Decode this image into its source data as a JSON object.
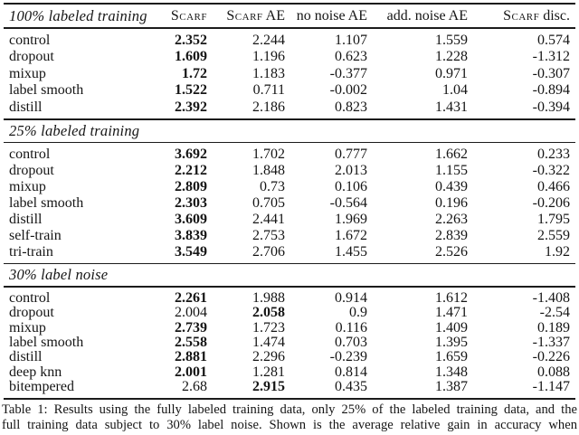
{
  "columns": [
    {
      "smallcaps": "Scarf",
      "rest": ""
    },
    {
      "smallcaps": "Scarf",
      "rest": " AE"
    },
    {
      "smallcaps": "",
      "rest": "no noise AE"
    },
    {
      "smallcaps": "",
      "rest": "add. noise AE"
    },
    {
      "smallcaps": "Scarf",
      "rest": " disc."
    }
  ],
  "sections": [
    {
      "title": "100% labeled training",
      "rows": [
        {
          "label": "control",
          "values": [
            "2.352",
            "2.244",
            "1.107",
            "1.559",
            "0.574"
          ],
          "bold_col": 0
        },
        {
          "label": "dropout",
          "values": [
            "1.609",
            "1.196",
            "0.623",
            "1.228",
            "-1.312"
          ],
          "bold_col": 0
        },
        {
          "label": "mixup",
          "values": [
            "1.72",
            "1.183",
            "-0.377",
            "0.971",
            "-0.307"
          ],
          "bold_col": 0
        },
        {
          "label": "label smooth",
          "values": [
            "1.522",
            "0.711",
            "-0.002",
            "1.04",
            "-0.894"
          ],
          "bold_col": 0
        },
        {
          "label": "distill",
          "values": [
            "2.392",
            "2.186",
            "0.823",
            "1.431",
            "-0.394"
          ],
          "bold_col": 0
        }
      ]
    },
    {
      "title": "25% labeled training",
      "rows": [
        {
          "label": "control",
          "values": [
            "3.692",
            "1.702",
            "0.777",
            "1.662",
            "0.233"
          ],
          "bold_col": 0
        },
        {
          "label": "dropout",
          "values": [
            "2.212",
            "1.848",
            "2.013",
            "1.155",
            "-0.322"
          ],
          "bold_col": 0
        },
        {
          "label": "mixup",
          "values": [
            "2.809",
            "0.73",
            "0.106",
            "0.439",
            "0.466"
          ],
          "bold_col": 0
        },
        {
          "label": "label smooth",
          "values": [
            "2.303",
            "0.705",
            "-0.564",
            "0.196",
            "-0.206"
          ],
          "bold_col": 0
        },
        {
          "label": "distill",
          "values": [
            "3.609",
            "2.441",
            "1.969",
            "2.263",
            "1.795"
          ],
          "bold_col": 0
        },
        {
          "label": "self-train",
          "values": [
            "3.839",
            "2.753",
            "1.672",
            "2.839",
            "2.559"
          ],
          "bold_col": 0
        },
        {
          "label": "tri-train",
          "values": [
            "3.549",
            "2.706",
            "1.455",
            "2.526",
            "1.92"
          ],
          "bold_col": 0
        }
      ]
    },
    {
      "title": "30% label noise",
      "rows": [
        {
          "label": "control",
          "values": [
            "2.261",
            "1.988",
            "0.914",
            "1.612",
            "-1.408"
          ],
          "bold_col": 0
        },
        {
          "label": "dropout",
          "values": [
            "2.004",
            "2.058",
            "0.9",
            "1.471",
            "-2.54"
          ],
          "bold_col": 1
        },
        {
          "label": "mixup",
          "values": [
            "2.739",
            "1.723",
            "0.116",
            "1.409",
            "0.189"
          ],
          "bold_col": 0
        },
        {
          "label": "label smooth",
          "values": [
            "2.558",
            "1.474",
            "0.703",
            "1.395",
            "-1.337"
          ],
          "bold_col": 0
        },
        {
          "label": "distill",
          "values": [
            "2.881",
            "2.296",
            "-0.239",
            "1.659",
            "-0.226"
          ],
          "bold_col": 0
        },
        {
          "label": "deep knn",
          "values": [
            "2.001",
            "1.281",
            "0.814",
            "1.348",
            "0.088"
          ],
          "bold_col": 0
        },
        {
          "label": "bitempered",
          "values": [
            "2.68",
            "2.915",
            "0.435",
            "1.387",
            "-1.147"
          ],
          "bold_col": 1
        }
      ]
    }
  ],
  "caption": {
    "line1": "Table 1:  Results using the fully labeled training data, only 25% of the labeled training data, and the",
    "line2": "full training data subject to 30% label noise. Shown is the average relative gain in accuracy when"
  },
  "colors": {
    "background": "#ffffff",
    "text": "#151515",
    "rule": "#1b1b1b"
  }
}
